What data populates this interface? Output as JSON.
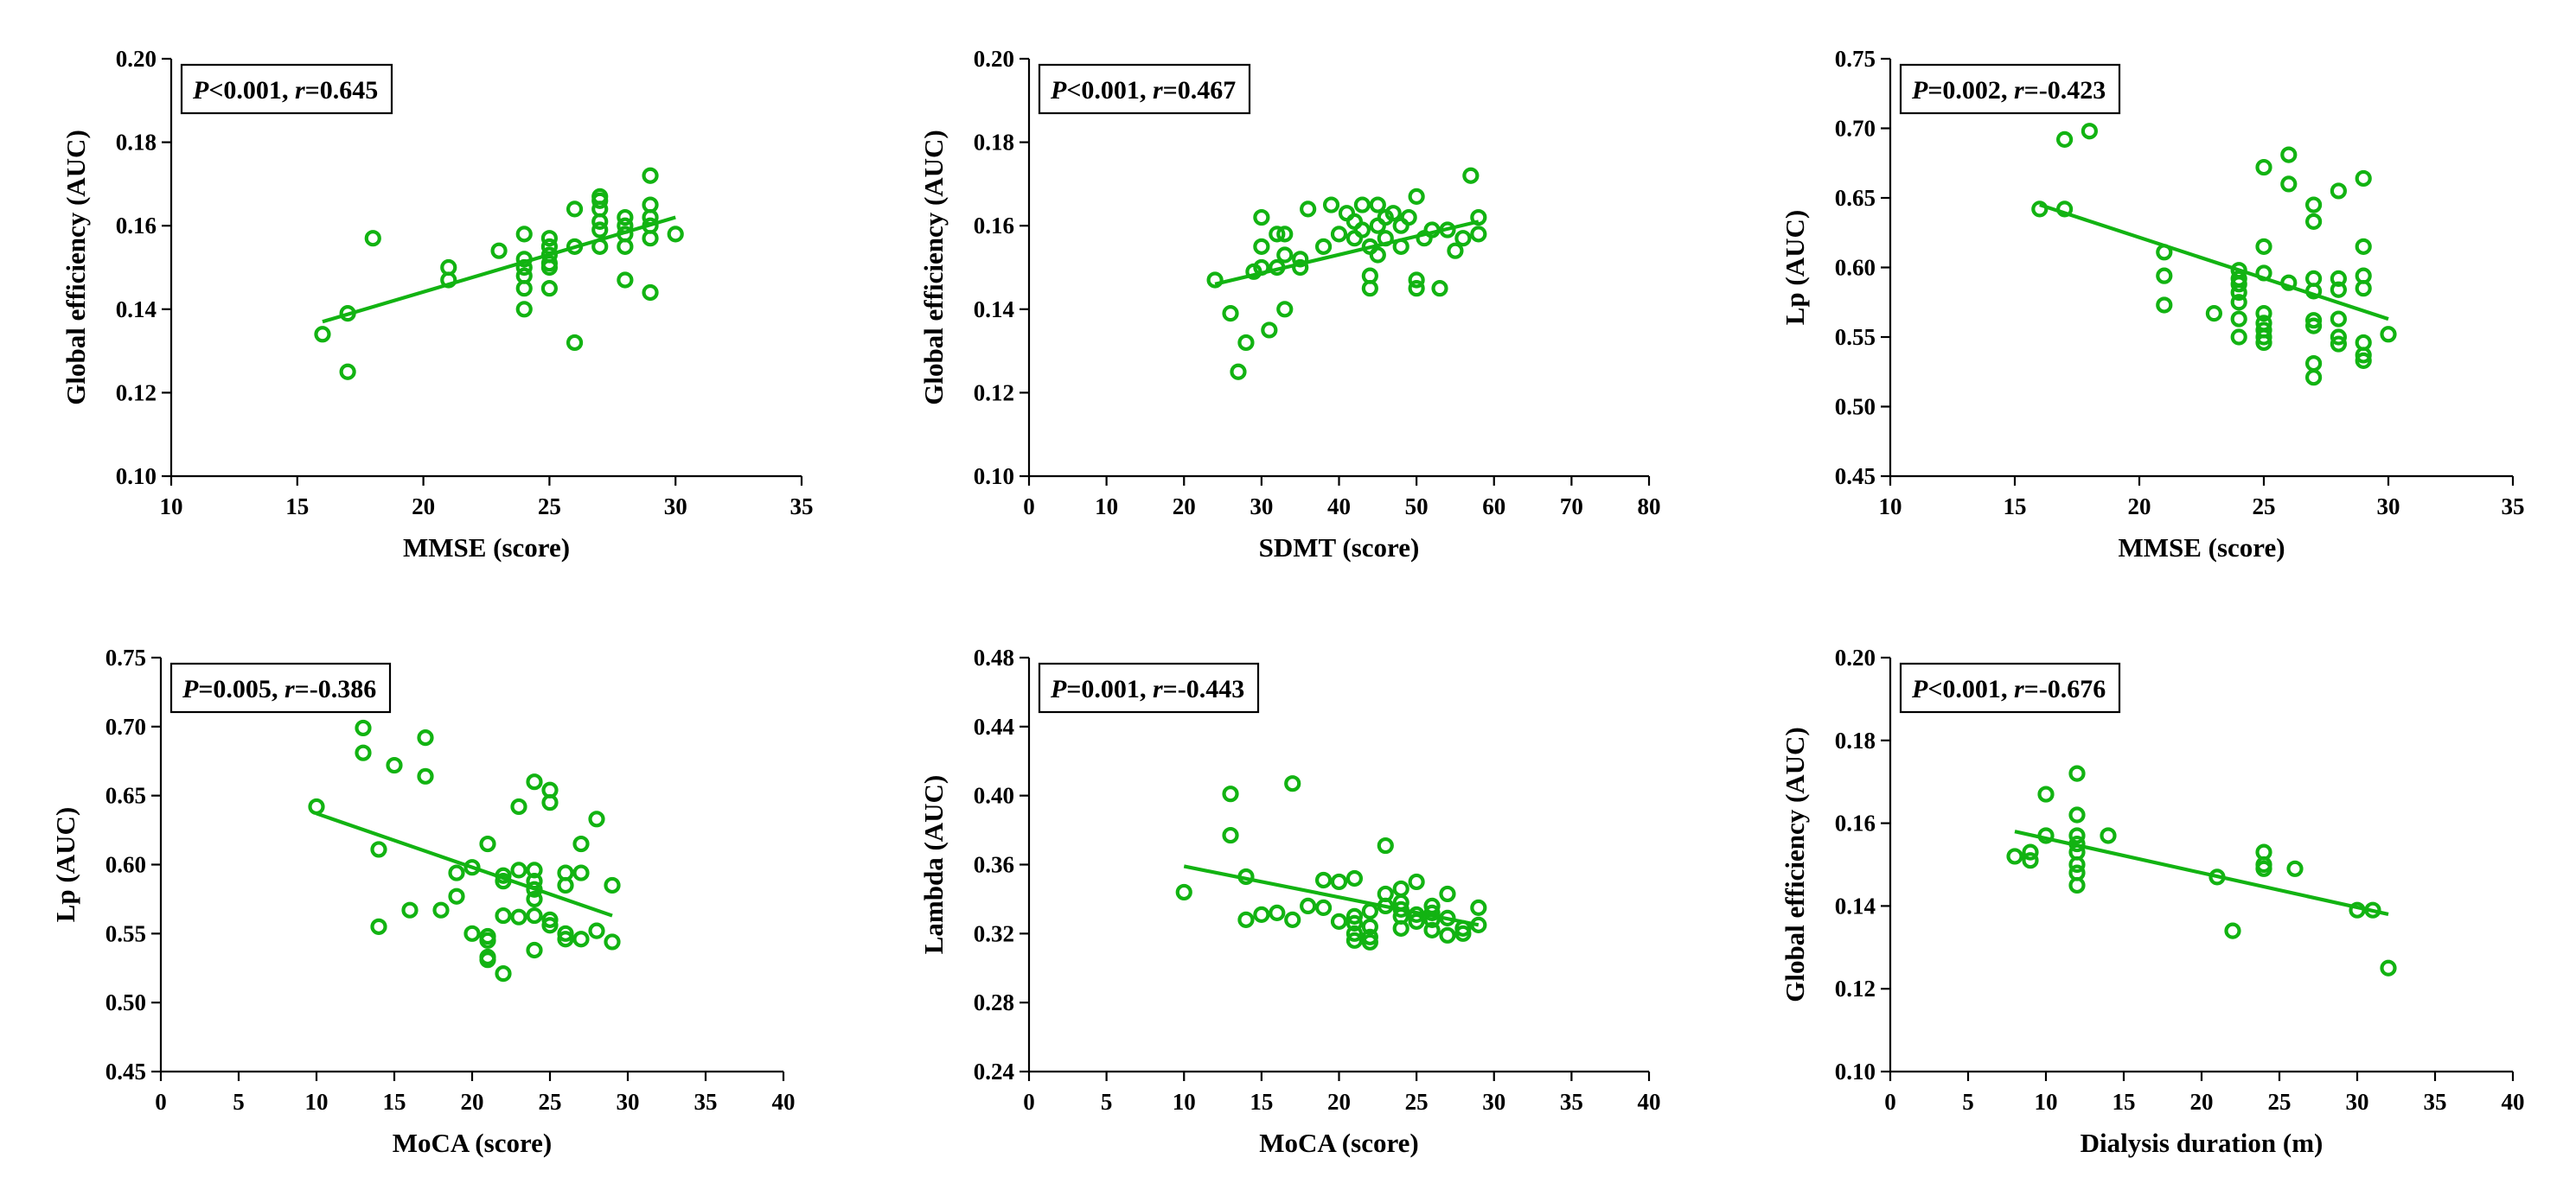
{
  "figure": {
    "accent_color": "#12b312"
  },
  "chart_data": [
    {
      "type": "scatter",
      "id": "mmse-ge",
      "xlabel": "MMSE (score)",
      "ylabel": "Global efficiency (AUC)",
      "xlim": [
        10,
        35
      ],
      "ylim": [
        0.1,
        0.2
      ],
      "xticks": [
        10,
        15,
        20,
        25,
        30,
        35
      ],
      "yticks": [
        0.1,
        0.12,
        0.14,
        0.16,
        0.18,
        0.2
      ],
      "xtick_labels": [
        "10",
        "15",
        "20",
        "25",
        "30",
        "35"
      ],
      "ytick_labels": [
        "0.10",
        "0.12",
        "0.14",
        "0.16",
        "0.18",
        "0.20"
      ],
      "stat": {
        "p_label": "P",
        "p_value": "<0.001",
        "r_label": "r",
        "r_value": "=0.645"
      },
      "fit": [
        [
          16,
          0.137
        ],
        [
          30,
          0.162
        ]
      ],
      "points": [
        [
          16,
          0.134
        ],
        [
          17,
          0.139
        ],
        [
          17,
          0.125
        ],
        [
          18,
          0.157
        ],
        [
          21,
          0.15
        ],
        [
          21,
          0.147
        ],
        [
          23,
          0.154
        ],
        [
          24,
          0.158
        ],
        [
          24,
          0.152
        ],
        [
          24,
          0.15
        ],
        [
          24,
          0.148
        ],
        [
          24,
          0.145
        ],
        [
          24,
          0.14
        ],
        [
          25,
          0.157
        ],
        [
          25,
          0.155
        ],
        [
          25,
          0.153
        ],
        [
          25,
          0.151
        ],
        [
          25,
          0.15
        ],
        [
          25,
          0.145
        ],
        [
          26,
          0.164
        ],
        [
          26,
          0.155
        ],
        [
          26,
          0.132
        ],
        [
          27,
          0.167
        ],
        [
          27,
          0.166
        ],
        [
          27,
          0.164
        ],
        [
          27,
          0.161
        ],
        [
          27,
          0.159
        ],
        [
          27,
          0.155
        ],
        [
          28,
          0.162
        ],
        [
          28,
          0.16
        ],
        [
          28,
          0.158
        ],
        [
          28,
          0.155
        ],
        [
          28,
          0.147
        ],
        [
          29,
          0.172
        ],
        [
          29,
          0.165
        ],
        [
          29,
          0.162
        ],
        [
          29,
          0.16
        ],
        [
          29,
          0.157
        ],
        [
          29,
          0.144
        ],
        [
          30,
          0.158
        ]
      ]
    },
    {
      "type": "scatter",
      "id": "sdmt-ge",
      "xlabel": "SDMT (score)",
      "ylabel": "Global efficiency (AUC)",
      "xlim": [
        0,
        80
      ],
      "ylim": [
        0.1,
        0.2
      ],
      "xticks": [
        0,
        10,
        20,
        30,
        40,
        50,
        60,
        70,
        80
      ],
      "yticks": [
        0.1,
        0.12,
        0.14,
        0.16,
        0.18,
        0.2
      ],
      "xtick_labels": [
        "0",
        "10",
        "20",
        "30",
        "40",
        "50",
        "60",
        "70",
        "80"
      ],
      "ytick_labels": [
        "0.10",
        "0.12",
        "0.14",
        "0.16",
        "0.18",
        "0.20"
      ],
      "stat": {
        "p_label": "P",
        "p_value": "<0.001",
        "r_label": "r",
        "r_value": "=0.467"
      },
      "fit": [
        [
          24,
          0.146
        ],
        [
          58,
          0.161
        ]
      ],
      "points": [
        [
          24,
          0.147
        ],
        [
          26,
          0.139
        ],
        [
          27,
          0.125
        ],
        [
          28,
          0.132
        ],
        [
          29,
          0.149
        ],
        [
          30,
          0.162
        ],
        [
          30,
          0.155
        ],
        [
          30,
          0.15
        ],
        [
          31,
          0.135
        ],
        [
          32,
          0.158
        ],
        [
          32,
          0.15
        ],
        [
          33,
          0.158
        ],
        [
          33,
          0.153
        ],
        [
          33,
          0.14
        ],
        [
          35,
          0.152
        ],
        [
          35,
          0.15
        ],
        [
          36,
          0.164
        ],
        [
          38,
          0.155
        ],
        [
          39,
          0.165
        ],
        [
          40,
          0.158
        ],
        [
          41,
          0.163
        ],
        [
          42,
          0.157
        ],
        [
          42,
          0.161
        ],
        [
          43,
          0.165
        ],
        [
          43,
          0.159
        ],
        [
          44,
          0.155
        ],
        [
          44,
          0.148
        ],
        [
          44,
          0.145
        ],
        [
          45,
          0.165
        ],
        [
          45,
          0.16
        ],
        [
          45,
          0.153
        ],
        [
          46,
          0.162
        ],
        [
          46,
          0.157
        ],
        [
          47,
          0.163
        ],
        [
          48,
          0.155
        ],
        [
          48,
          0.16
        ],
        [
          49,
          0.162
        ],
        [
          50,
          0.167
        ],
        [
          50,
          0.147
        ],
        [
          50,
          0.145
        ],
        [
          51,
          0.157
        ],
        [
          52,
          0.159
        ],
        [
          53,
          0.145
        ],
        [
          54,
          0.159
        ],
        [
          55,
          0.154
        ],
        [
          56,
          0.157
        ],
        [
          57,
          0.172
        ],
        [
          58,
          0.162
        ],
        [
          58,
          0.158
        ]
      ]
    },
    {
      "type": "scatter",
      "id": "mmse-lp",
      "xlabel": "MMSE (score)",
      "ylabel": "Lp (AUC)",
      "xlim": [
        10,
        35
      ],
      "ylim": [
        0.45,
        0.75
      ],
      "xticks": [
        10,
        15,
        20,
        25,
        30,
        35
      ],
      "yticks": [
        0.45,
        0.5,
        0.55,
        0.6,
        0.65,
        0.7,
        0.75
      ],
      "xtick_labels": [
        "10",
        "15",
        "20",
        "25",
        "30",
        "35"
      ],
      "ytick_labels": [
        "0.45",
        "0.50",
        "0.55",
        "0.60",
        "0.65",
        "0.70",
        "0.75"
      ],
      "stat": {
        "p_label": "P",
        "p_value": "=0.002",
        "r_label": "r",
        "r_value": "=-0.423"
      },
      "fit": [
        [
          16,
          0.645
        ],
        [
          30,
          0.563
        ]
      ],
      "points": [
        [
          16,
          0.642
        ],
        [
          17,
          0.642
        ],
        [
          17,
          0.692
        ],
        [
          18,
          0.698
        ],
        [
          21,
          0.611
        ],
        [
          21,
          0.594
        ],
        [
          21,
          0.573
        ],
        [
          23,
          0.567
        ],
        [
          24,
          0.598
        ],
        [
          24,
          0.592
        ],
        [
          24,
          0.588
        ],
        [
          24,
          0.582
        ],
        [
          24,
          0.575
        ],
        [
          24,
          0.563
        ],
        [
          24,
          0.55
        ],
        [
          25,
          0.672
        ],
        [
          25,
          0.615
        ],
        [
          25,
          0.596
        ],
        [
          25,
          0.567
        ],
        [
          25,
          0.56
        ],
        [
          25,
          0.555
        ],
        [
          25,
          0.55
        ],
        [
          25,
          0.546
        ],
        [
          26,
          0.681
        ],
        [
          26,
          0.66
        ],
        [
          26,
          0.589
        ],
        [
          27,
          0.645
        ],
        [
          27,
          0.633
        ],
        [
          27,
          0.592
        ],
        [
          27,
          0.583
        ],
        [
          27,
          0.562
        ],
        [
          27,
          0.558
        ],
        [
          27,
          0.531
        ],
        [
          27,
          0.521
        ],
        [
          28,
          0.655
        ],
        [
          28,
          0.592
        ],
        [
          28,
          0.584
        ],
        [
          28,
          0.563
        ],
        [
          28,
          0.55
        ],
        [
          28,
          0.545
        ],
        [
          29,
          0.664
        ],
        [
          29,
          0.615
        ],
        [
          29,
          0.594
        ],
        [
          29,
          0.585
        ],
        [
          29,
          0.546
        ],
        [
          29,
          0.537
        ],
        [
          29,
          0.533
        ],
        [
          30,
          0.552
        ]
      ]
    },
    {
      "type": "scatter",
      "id": "moca-lp",
      "xlabel": "MoCA (score)",
      "ylabel": "Lp (AUC)",
      "xlim": [
        0,
        40
      ],
      "ylim": [
        0.45,
        0.75
      ],
      "xticks": [
        0,
        5,
        10,
        15,
        20,
        25,
        30,
        35,
        40
      ],
      "yticks": [
        0.45,
        0.5,
        0.55,
        0.6,
        0.65,
        0.7,
        0.75
      ],
      "xtick_labels": [
        "0",
        "5",
        "10",
        "15",
        "20",
        "25",
        "30",
        "35",
        "40"
      ],
      "ytick_labels": [
        "0.45",
        "0.50",
        "0.55",
        "0.60",
        "0.65",
        "0.70",
        "0.75"
      ],
      "stat": {
        "p_label": "P",
        "p_value": "=0.005",
        "r_label": "r",
        "r_value": "=-0.386"
      },
      "fit": [
        [
          10,
          0.637
        ],
        [
          29,
          0.563
        ]
      ],
      "points": [
        [
          10,
          0.642
        ],
        [
          13,
          0.699
        ],
        [
          13,
          0.681
        ],
        [
          14,
          0.611
        ],
        [
          14,
          0.555
        ],
        [
          15,
          0.672
        ],
        [
          16,
          0.567
        ],
        [
          17,
          0.692
        ],
        [
          17,
          0.664
        ],
        [
          18,
          0.567
        ],
        [
          19,
          0.594
        ],
        [
          19,
          0.577
        ],
        [
          20,
          0.598
        ],
        [
          20,
          0.55
        ],
        [
          21,
          0.615
        ],
        [
          21,
          0.548
        ],
        [
          21,
          0.545
        ],
        [
          21,
          0.533
        ],
        [
          21,
          0.531
        ],
        [
          22,
          0.588
        ],
        [
          22,
          0.592
        ],
        [
          22,
          0.563
        ],
        [
          22,
          0.521
        ],
        [
          23,
          0.642
        ],
        [
          23,
          0.596
        ],
        [
          23,
          0.562
        ],
        [
          24,
          0.66
        ],
        [
          24,
          0.596
        ],
        [
          24,
          0.588
        ],
        [
          24,
          0.582
        ],
        [
          24,
          0.575
        ],
        [
          24,
          0.563
        ],
        [
          24,
          0.538
        ],
        [
          25,
          0.654
        ],
        [
          25,
          0.645
        ],
        [
          25,
          0.56
        ],
        [
          25,
          0.556
        ],
        [
          26,
          0.594
        ],
        [
          26,
          0.585
        ],
        [
          26,
          0.55
        ],
        [
          26,
          0.546
        ],
        [
          27,
          0.615
        ],
        [
          27,
          0.594
        ],
        [
          27,
          0.546
        ],
        [
          28,
          0.633
        ],
        [
          28,
          0.552
        ],
        [
          29,
          0.585
        ],
        [
          29,
          0.544
        ]
      ]
    },
    {
      "type": "scatter",
      "id": "moca-lambda",
      "xlabel": "MoCA (score)",
      "ylabel": "Lambda (AUC)",
      "xlim": [
        0,
        40
      ],
      "ylim": [
        0.24,
        0.48
      ],
      "xticks": [
        0,
        5,
        10,
        15,
        20,
        25,
        30,
        35,
        40
      ],
      "yticks": [
        0.24,
        0.28,
        0.32,
        0.36,
        0.4,
        0.44,
        0.48
      ],
      "xtick_labels": [
        "0",
        "5",
        "10",
        "15",
        "20",
        "25",
        "30",
        "35",
        "40"
      ],
      "ytick_labels": [
        "0.24",
        "0.28",
        "0.32",
        "0.36",
        "0.40",
        "0.44",
        "0.48"
      ],
      "stat": {
        "p_label": "P",
        "p_value": "=0.001",
        "r_label": "r",
        "r_value": "=-0.443"
      },
      "fit": [
        [
          10,
          0.359
        ],
        [
          29,
          0.325
        ]
      ],
      "points": [
        [
          10,
          0.344
        ],
        [
          13,
          0.401
        ],
        [
          13,
          0.377
        ],
        [
          14,
          0.353
        ],
        [
          14,
          0.328
        ],
        [
          15,
          0.331
        ],
        [
          16,
          0.332
        ],
        [
          17,
          0.407
        ],
        [
          17,
          0.328
        ],
        [
          18,
          0.336
        ],
        [
          19,
          0.351
        ],
        [
          19,
          0.335
        ],
        [
          20,
          0.35
        ],
        [
          20,
          0.327
        ],
        [
          21,
          0.352
        ],
        [
          21,
          0.33
        ],
        [
          21,
          0.326
        ],
        [
          21,
          0.32
        ],
        [
          21,
          0.316
        ],
        [
          22,
          0.333
        ],
        [
          22,
          0.324
        ],
        [
          22,
          0.318
        ],
        [
          22,
          0.315
        ],
        [
          23,
          0.371
        ],
        [
          23,
          0.343
        ],
        [
          23,
          0.336
        ],
        [
          24,
          0.346
        ],
        [
          24,
          0.338
        ],
        [
          24,
          0.334
        ],
        [
          24,
          0.33
        ],
        [
          24,
          0.323
        ],
        [
          25,
          0.35
        ],
        [
          25,
          0.331
        ],
        [
          25,
          0.327
        ],
        [
          26,
          0.336
        ],
        [
          26,
          0.332
        ],
        [
          26,
          0.328
        ],
        [
          26,
          0.322
        ],
        [
          27,
          0.343
        ],
        [
          27,
          0.329
        ],
        [
          27,
          0.319
        ],
        [
          28,
          0.323
        ],
        [
          28,
          0.32
        ],
        [
          29,
          0.335
        ],
        [
          29,
          0.325
        ]
      ]
    },
    {
      "type": "scatter",
      "id": "dialysis-ge",
      "xlabel": "Dialysis duration (m)",
      "ylabel": "Global efficiency (AUC)",
      "xlim": [
        0,
        40
      ],
      "ylim": [
        0.1,
        0.2
      ],
      "xticks": [
        0,
        5,
        10,
        15,
        20,
        25,
        30,
        35,
        40
      ],
      "yticks": [
        0.1,
        0.12,
        0.14,
        0.16,
        0.18,
        0.2
      ],
      "xtick_labels": [
        "0",
        "5",
        "10",
        "15",
        "20",
        "25",
        "30",
        "35",
        "40"
      ],
      "ytick_labels": [
        "0.10",
        "0.12",
        "0.14",
        "0.16",
        "0.18",
        "0.20"
      ],
      "stat": {
        "p_label": "P",
        "p_value": "<0.001",
        "r_label": "r",
        "r_value": "=-0.676"
      },
      "fit": [
        [
          8,
          0.158
        ],
        [
          32,
          0.138
        ]
      ],
      "points": [
        [
          8,
          0.152
        ],
        [
          9,
          0.153
        ],
        [
          9,
          0.151
        ],
        [
          10,
          0.167
        ],
        [
          10,
          0.157
        ],
        [
          12,
          0.172
        ],
        [
          12,
          0.162
        ],
        [
          12,
          0.157
        ],
        [
          12,
          0.155
        ],
        [
          12,
          0.153
        ],
        [
          12,
          0.15
        ],
        [
          12,
          0.148
        ],
        [
          12,
          0.145
        ],
        [
          14,
          0.157
        ],
        [
          21,
          0.147
        ],
        [
          22,
          0.134
        ],
        [
          24,
          0.153
        ],
        [
          24,
          0.15
        ],
        [
          24,
          0.149
        ],
        [
          26,
          0.149
        ],
        [
          30,
          0.139
        ],
        [
          31,
          0.139
        ],
        [
          32,
          0.125
        ]
      ]
    }
  ]
}
